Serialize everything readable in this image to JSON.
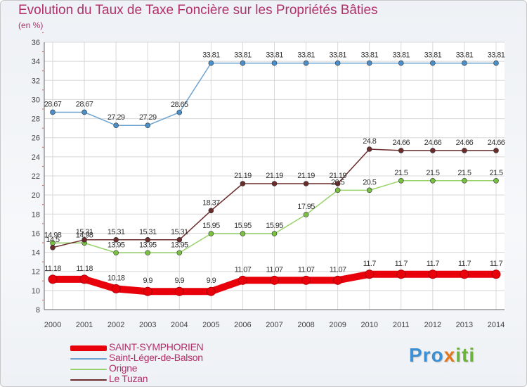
{
  "header": {
    "title": "Evolution du Taux de Taxe Foncière sur les Propriétés Bâties",
    "unit": "(en %)"
  },
  "brand": {
    "parts": [
      "Pro",
      "x",
      "iti"
    ]
  },
  "legend": [
    {
      "label": "SAINT-SYMPHORIEN",
      "color": "#e8000b"
    },
    {
      "label": "Saint-Léger-de-Balson",
      "color": "#6fa3cf"
    },
    {
      "label": "Origne",
      "color": "#99d26b"
    },
    {
      "label": "Le Tuzan",
      "color": "#6b2c2c"
    }
  ],
  "chart_data": {
    "type": "line",
    "x": [
      "2000",
      "2001",
      "2002",
      "2003",
      "2004",
      "2005",
      "2006",
      "2007",
      "2008",
      "2009",
      "2010",
      "2011",
      "2012",
      "2013",
      "2014"
    ],
    "ylim": [
      8,
      36
    ],
    "yticks": [
      8,
      10,
      12,
      14,
      16,
      18,
      20,
      22,
      24,
      26,
      28,
      30,
      32,
      34,
      36
    ],
    "grid": true,
    "title": "Evolution du Taux de Taxe Foncière sur les Propriétés Bâties",
    "ylabel": "(en %)",
    "legend_position": "bottom-left",
    "series": [
      {
        "name": "Saint-Léger-de-Balson",
        "color": "#4a8fc9",
        "line_color": "#6fa3cf",
        "values": [
          28.67,
          28.67,
          27.29,
          27.29,
          28.65,
          33.81,
          33.81,
          33.81,
          33.81,
          33.81,
          33.81,
          33.81,
          33.81,
          33.81,
          33.81
        ],
        "labels": [
          "28.67",
          "28.67",
          "27.29",
          "27.29",
          "28.65",
          "33.81",
          "33.81",
          "33.81",
          "33.81",
          "33.81",
          "33.81",
          "33.81",
          "33.81",
          "33.81",
          "33.81"
        ]
      },
      {
        "name": "Origne",
        "color": "#79c043",
        "line_color": "#99d26b",
        "values": [
          14.98,
          14.98,
          13.95,
          13.95,
          13.95,
          15.95,
          15.95,
          15.95,
          17.95,
          20.5,
          20.5,
          21.5,
          21.5,
          21.5,
          21.5
        ],
        "labels": [
          "14.98",
          "14.98",
          "13.95",
          "13.95",
          "13.95",
          "15.95",
          "15.95",
          "15.95",
          "17.95",
          "20.5",
          "20.5",
          "21.5",
          "21.5",
          "21.5",
          "21.5"
        ]
      },
      {
        "name": "Le Tuzan",
        "color": "#6b2c2c",
        "line_color": "#6b2c2c",
        "values": [
          14.5,
          15.31,
          15.31,
          15.31,
          15.31,
          18.37,
          21.19,
          21.19,
          21.19,
          21.19,
          24.8,
          24.66,
          24.66,
          24.66,
          24.66
        ],
        "labels": [
          "14.5",
          "15.31",
          "15.31",
          "15.31",
          "15.31",
          "18.37",
          "21.19",
          "21.19",
          "21.19",
          "21.19",
          "24.8",
          "24.66",
          "24.66",
          "24.66",
          "24.66"
        ]
      },
      {
        "name": "SAINT-SYMPHORIEN",
        "color": "#e8000b",
        "line_color": "#e8000b",
        "bold": true,
        "values": [
          11.18,
          11.18,
          10.18,
          9.9,
          9.9,
          9.9,
          11.07,
          11.07,
          11.07,
          11.07,
          11.7,
          11.7,
          11.7,
          11.7,
          11.7
        ],
        "labels": [
          "11.18",
          "11.18",
          "10.18",
          "9.9",
          "9.9",
          "9.9",
          "11.07",
          "11.07",
          "11.07",
          "11.07",
          "11.7",
          "11.7",
          "11.7",
          "11.7",
          "11.7"
        ]
      }
    ]
  }
}
